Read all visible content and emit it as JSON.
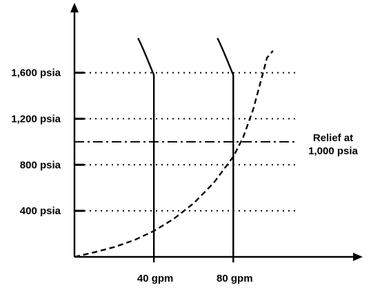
{
  "chart_data": {
    "type": "line",
    "title": "",
    "xlabel": "",
    "ylabel": "",
    "x_tick_labels": [
      {
        "value": 40,
        "label": "40 gpm"
      },
      {
        "value": 80,
        "label": "80 gpm"
      }
    ],
    "y_tick_labels": [
      {
        "value": 400,
        "label": "400 psia"
      },
      {
        "value": 800,
        "label": "800 psia"
      },
      {
        "value": 1200,
        "label": "1,200 psia"
      },
      {
        "value": 1600,
        "label": "1,600 psia"
      }
    ],
    "xlim": [
      0,
      140
    ],
    "ylim": [
      0,
      2100
    ],
    "grid": "dotted horizontal reference lines at labeled pressures",
    "relief_line": {
      "value": 1000,
      "label_lines": [
        "Relief at",
        "1,000 psia"
      ],
      "style": "dash-dot"
    },
    "curves": [
      {
        "style": "solid",
        "flow": 40,
        "points": [
          [
            32,
            1900
          ],
          [
            34,
            1820
          ],
          [
            36,
            1730
          ],
          [
            38.5,
            1640
          ],
          [
            40,
            1580
          ],
          [
            40,
            0
          ]
        ]
      },
      {
        "style": "solid",
        "flow": 80,
        "points": [
          [
            72,
            1900
          ],
          [
            74,
            1820
          ],
          [
            76,
            1730
          ],
          [
            78.5,
            1640
          ],
          [
            80,
            1580
          ],
          [
            80,
            0
          ]
        ]
      },
      {
        "style": "dashed",
        "points": [
          [
            0,
            0
          ],
          [
            10,
            40
          ],
          [
            20,
            85
          ],
          [
            30,
            145
          ],
          [
            40,
            225
          ],
          [
            50,
            330
          ],
          [
            60,
            465
          ],
          [
            70,
            640
          ],
          [
            80,
            870
          ],
          [
            85,
            1040
          ],
          [
            90,
            1280
          ],
          [
            95,
            1600
          ],
          [
            97,
            1730
          ],
          [
            100,
            1790
          ]
        ]
      }
    ],
    "colors": {
      "ink": "#000000",
      "background": "#ffffff"
    }
  }
}
